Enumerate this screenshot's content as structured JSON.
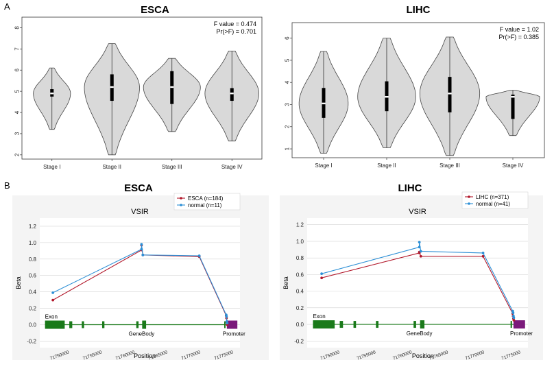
{
  "panel_a_label": "A",
  "panel_b_label": "B",
  "chart_data": [
    {
      "type": "violin",
      "panel": "A",
      "title": "ESCA",
      "categories": [
        "Stage I",
        "Stage II",
        "Stage III",
        "Stage IV"
      ],
      "ylim": [
        1.8,
        8.5
      ],
      "yticks": [
        2,
        3,
        4,
        5,
        6,
        7,
        8
      ],
      "stats": [
        "F value = 0.474",
        "Pr(>F) = 0.701"
      ],
      "groups": [
        {
          "min": 3.2,
          "q1": 4.75,
          "median": 4.9,
          "q3": 5.1,
          "max": 6.1,
          "width": 0.62
        },
        {
          "min": 2.0,
          "q1": 4.55,
          "median": 5.2,
          "q3": 5.8,
          "max": 7.25,
          "width": 0.92
        },
        {
          "min": 3.1,
          "q1": 4.4,
          "median": 5.2,
          "q3": 5.95,
          "max": 6.55,
          "width": 0.95
        },
        {
          "min": 2.65,
          "q1": 4.55,
          "median": 4.9,
          "q3": 5.15,
          "max": 6.9,
          "width": 0.9
        }
      ]
    },
    {
      "type": "violin",
      "panel": "A",
      "title": "LIHC",
      "categories": [
        "Stage I",
        "Stage II",
        "Stage III",
        "Stage IV"
      ],
      "ylim": [
        0.6,
        6.7
      ],
      "yticks": [
        1,
        2,
        3,
        4,
        5,
        6
      ],
      "stats": [
        "F value = 1.02",
        "Pr(>F) = 0.385"
      ],
      "groups": [
        {
          "min": 0.8,
          "q1": 2.4,
          "median": 3.05,
          "q3": 3.75,
          "max": 5.4,
          "width": 0.78
        },
        {
          "min": 1.05,
          "q1": 2.7,
          "median": 3.35,
          "q3": 4.05,
          "max": 6.0,
          "width": 0.92
        },
        {
          "min": 0.7,
          "q1": 2.65,
          "median": 3.5,
          "q3": 4.25,
          "max": 6.05,
          "width": 0.95
        },
        {
          "min": 1.6,
          "q1": 2.35,
          "median": 3.35,
          "q3": 3.45,
          "max": 3.65,
          "width": 0.85
        }
      ]
    },
    {
      "type": "line",
      "panel": "B",
      "title": "ESCA",
      "subtitle": "VSIR",
      "xlabel": "Position",
      "ylabel": "Beta",
      "xlim": [
        71745500,
        71776000
      ],
      "ylim": [
        -0.28,
        1.3
      ],
      "yticks": [
        -0.2,
        0.0,
        0.2,
        0.4,
        0.6,
        0.8,
        1.0,
        1.2
      ],
      "xticks": [
        71750000,
        71755000,
        71760000,
        71765000,
        71770000,
        71775000
      ],
      "series": [
        {
          "name": "ESCA (n=184)",
          "color": "#b2182b",
          "x": [
            71747500,
            71761000,
            71761000,
            71761200,
            71769800,
            71773900,
            71773950,
            71774000,
            71774050
          ],
          "y": [
            0.3,
            0.91,
            0.97,
            0.85,
            0.83,
            0.11,
            0.08,
            0.03,
            0.0
          ]
        },
        {
          "name": "normal (n=11)",
          "color": "#2c8fd6",
          "x": [
            71747500,
            71761000,
            71761000,
            71761200,
            71769800,
            71773900,
            71773950,
            71774000,
            71774050
          ],
          "y": [
            0.39,
            0.92,
            0.98,
            0.85,
            0.84,
            0.12,
            0.1,
            0.04,
            0.02
          ]
        }
      ],
      "gene_track": {
        "labels": [
          "Exon",
          "GeneBody",
          "Promoter"
        ],
        "exon_color": "#1a7a1a",
        "promoter_color": "#7b1a7b"
      }
    },
    {
      "type": "line",
      "panel": "B",
      "title": "LIHC",
      "subtitle": "VSIR",
      "xlabel": "Position",
      "ylabel": "Beta",
      "xlim": [
        71745500,
        71776000
      ],
      "ylim": [
        -0.28,
        1.28
      ],
      "yticks": [
        -0.2,
        0.0,
        0.2,
        0.4,
        0.6,
        0.8,
        1.0,
        1.2
      ],
      "xticks": [
        71750000,
        71755000,
        71760000,
        71765000,
        71770000,
        71775000
      ],
      "series": [
        {
          "name": "LIHC (n=371)",
          "color": "#b2182b",
          "x": [
            71747500,
            71761000,
            71761000,
            71761200,
            71769800,
            71773900,
            71773950,
            71774000,
            71774050
          ],
          "y": [
            0.56,
            0.86,
            0.87,
            0.82,
            0.82,
            0.13,
            0.1,
            0.07,
            0.05
          ]
        },
        {
          "name": "normal (n=41)",
          "color": "#2c8fd6",
          "x": [
            71747500,
            71761000,
            71761000,
            71761200,
            71769800,
            71773900,
            71773950,
            71774000,
            71774050
          ],
          "y": [
            0.61,
            0.93,
            0.99,
            0.88,
            0.86,
            0.16,
            0.14,
            0.1,
            0.08
          ]
        }
      ],
      "gene_track": {
        "labels": [
          "Exon",
          "GeneBody",
          "Promoter"
        ],
        "exon_color": "#1a7a1a",
        "promoter_color": "#7b1a7b"
      }
    }
  ]
}
